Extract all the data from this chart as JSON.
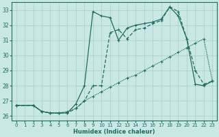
{
  "xlabel": "Humidex (Indice chaleur)",
  "xlim": [
    -0.5,
    23.5
  ],
  "ylim": [
    25.7,
    33.5
  ],
  "yticks": [
    26,
    27,
    28,
    29,
    30,
    31,
    32,
    33
  ],
  "xticks": [
    0,
    1,
    2,
    3,
    4,
    5,
    6,
    7,
    8,
    9,
    10,
    11,
    12,
    13,
    14,
    15,
    16,
    17,
    18,
    19,
    20,
    21,
    22,
    23
  ],
  "bg_color": "#c9e8e4",
  "line_color": "#1a6b60",
  "grid_color": "#a8ccc8",
  "line1_x": [
    0,
    2,
    3,
    4,
    5,
    6,
    7,
    8,
    9,
    10,
    11,
    12,
    13,
    14,
    15,
    16,
    17,
    18,
    19,
    20,
    21,
    22,
    23
  ],
  "line1_y": [
    26.7,
    26.7,
    26.3,
    26.2,
    26.2,
    26.2,
    26.8,
    28.0,
    32.9,
    32.6,
    32.5,
    31.0,
    31.8,
    32.0,
    32.1,
    32.2,
    32.4,
    33.2,
    32.6,
    31.1,
    28.1,
    28.0,
    28.3
  ],
  "line2_x": [
    0,
    2,
    3,
    4,
    5,
    6,
    7,
    8,
    9,
    10,
    11,
    12,
    13,
    14,
    15,
    16,
    17,
    18,
    19,
    20,
    21,
    22,
    23
  ],
  "line2_y": [
    26.7,
    26.7,
    26.3,
    26.2,
    26.2,
    26.2,
    26.5,
    27.0,
    28.0,
    28.0,
    31.5,
    31.7,
    31.1,
    31.7,
    31.8,
    32.1,
    32.3,
    33.2,
    32.9,
    31.1,
    29.0,
    28.1,
    28.3
  ],
  "line3_x": [
    0,
    2,
    3,
    4,
    5,
    6,
    7,
    8,
    9,
    10,
    11,
    12,
    13,
    14,
    15,
    16,
    17,
    18,
    19,
    20,
    21,
    22,
    23
  ],
  "line3_y": [
    26.7,
    26.7,
    26.3,
    26.2,
    26.2,
    26.3,
    26.5,
    27.0,
    27.3,
    27.6,
    27.9,
    28.2,
    28.5,
    28.7,
    29.0,
    29.3,
    29.6,
    29.9,
    30.2,
    30.5,
    30.8,
    31.1,
    28.3
  ]
}
